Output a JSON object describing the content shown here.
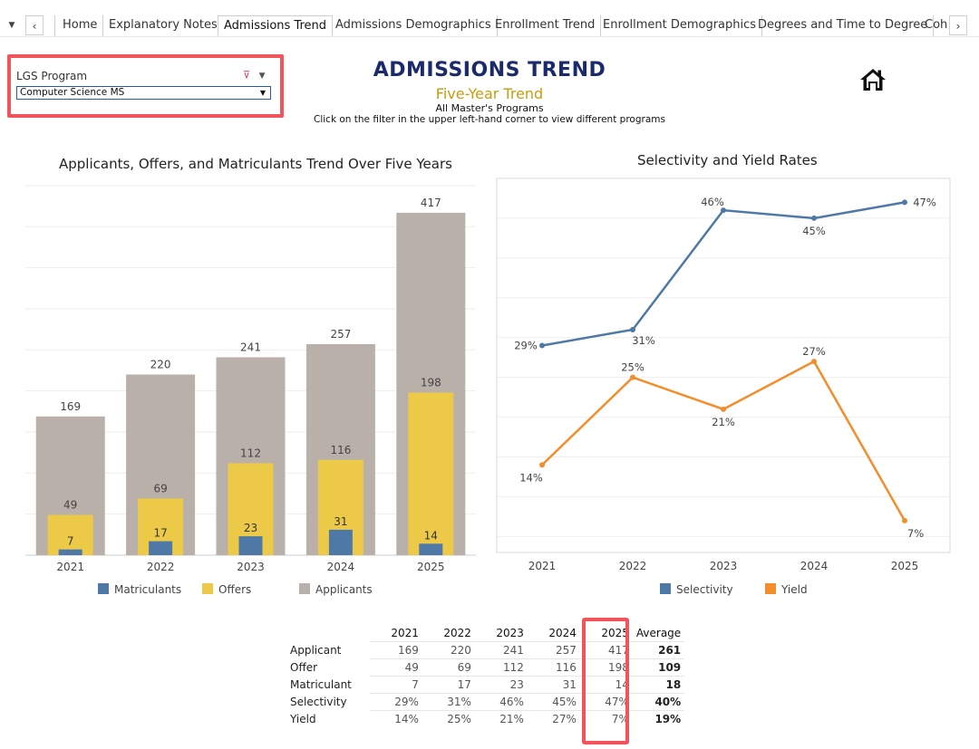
{
  "tabs": {
    "items": [
      "Home",
      "Explanatory Notes",
      "Admissions Trend",
      "Admissions Demographics",
      "Enrollment Trend",
      "Enrollment Demographics",
      "Degrees and Time to Degree",
      "Coh"
    ],
    "active": "Admissions Trend"
  },
  "filter": {
    "label": "LGS Program",
    "selected": "Computer Science MS"
  },
  "header": {
    "title": "ADMISSIONS TREND",
    "subtitle": "Five-Year Trend",
    "scope": "All Master's Programs",
    "instruction": "Click on the filter in the upper left-hand corner to view different programs"
  },
  "colors": {
    "applicants": "#b9b0aa",
    "offers": "#edc948",
    "matriculants": "#4e79a7",
    "selectivity": "#4e79a7",
    "yield": "#f28e2b",
    "title": "#1b2a6b",
    "highlight": "#f2545b"
  },
  "chart_data": [
    {
      "type": "bar",
      "title": "Applicants, Offers, and Matriculants Trend Over Five Years",
      "categories": [
        "2021",
        "2022",
        "2023",
        "2024",
        "2025"
      ],
      "series": [
        {
          "name": "Applicants",
          "values": [
            169,
            220,
            241,
            257,
            417
          ]
        },
        {
          "name": "Offers",
          "values": [
            49,
            69,
            112,
            116,
            198
          ]
        },
        {
          "name": "Matriculants",
          "values": [
            7,
            17,
            23,
            31,
            14
          ]
        }
      ],
      "legend": [
        "Matriculants",
        "Offers",
        "Applicants"
      ],
      "ylim": [
        0,
        450
      ],
      "grid": true
    },
    {
      "type": "line",
      "title": "Selectivity and Yield Rates",
      "categories": [
        "2021",
        "2022",
        "2023",
        "2024",
        "2025"
      ],
      "series": [
        {
          "name": "Selectivity",
          "values": [
            29,
            31,
            46,
            45,
            47
          ],
          "labels": [
            "29%",
            "31%",
            "46%",
            "45%",
            "47%"
          ]
        },
        {
          "name": "Yield",
          "values": [
            14,
            25,
            21,
            27,
            7
          ],
          "labels": [
            "14%",
            "25%",
            "21%",
            "27%",
            "7%"
          ]
        }
      ],
      "legend": [
        "Selectivity",
        "Yield"
      ],
      "ylim": [
        3,
        50
      ],
      "grid": true
    }
  ],
  "table": {
    "columns": [
      "2021",
      "2022",
      "2023",
      "2024",
      "2025",
      "Average"
    ],
    "rows": [
      {
        "label": "Applicant",
        "values": [
          "169",
          "220",
          "241",
          "257",
          "417"
        ],
        "average": "261"
      },
      {
        "label": "Offer",
        "values": [
          "49",
          "69",
          "112",
          "116",
          "198"
        ],
        "average": "109"
      },
      {
        "label": "Matriculant",
        "values": [
          "7",
          "17",
          "23",
          "31",
          "14"
        ],
        "average": "18"
      },
      {
        "label": "Selectivity",
        "values": [
          "29%",
          "31%",
          "46%",
          "45%",
          "47%"
        ],
        "average": "40%"
      },
      {
        "label": "Yield",
        "values": [
          "14%",
          "25%",
          "21%",
          "27%",
          "7%"
        ],
        "average": "19%"
      }
    ]
  }
}
